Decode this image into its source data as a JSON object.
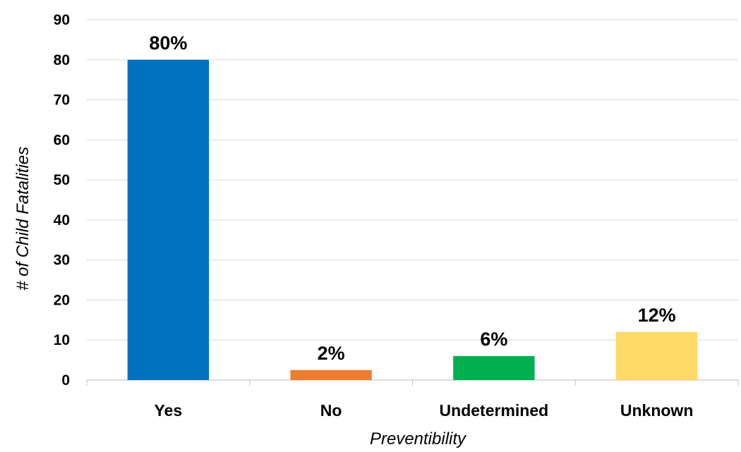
{
  "chart_data": {
    "type": "bar",
    "title": "",
    "xlabel": "Preventibility",
    "ylabel": "# of Child Fatalities",
    "categories": [
      "Yes",
      "No",
      "Undetermined",
      "Unknown"
    ],
    "values": [
      80,
      2.5,
      6,
      12
    ],
    "data_labels": [
      "80%",
      "2%",
      "6%",
      "12%"
    ],
    "colors": [
      "#0070C0",
      "#ED7D31",
      "#00B050",
      "#FFD966"
    ],
    "ylim": [
      0,
      90
    ],
    "yticks": [
      "0",
      "10",
      "20",
      "30",
      "40",
      "50",
      "60",
      "70",
      "80",
      "90"
    ],
    "grid": true,
    "legend": "none"
  }
}
